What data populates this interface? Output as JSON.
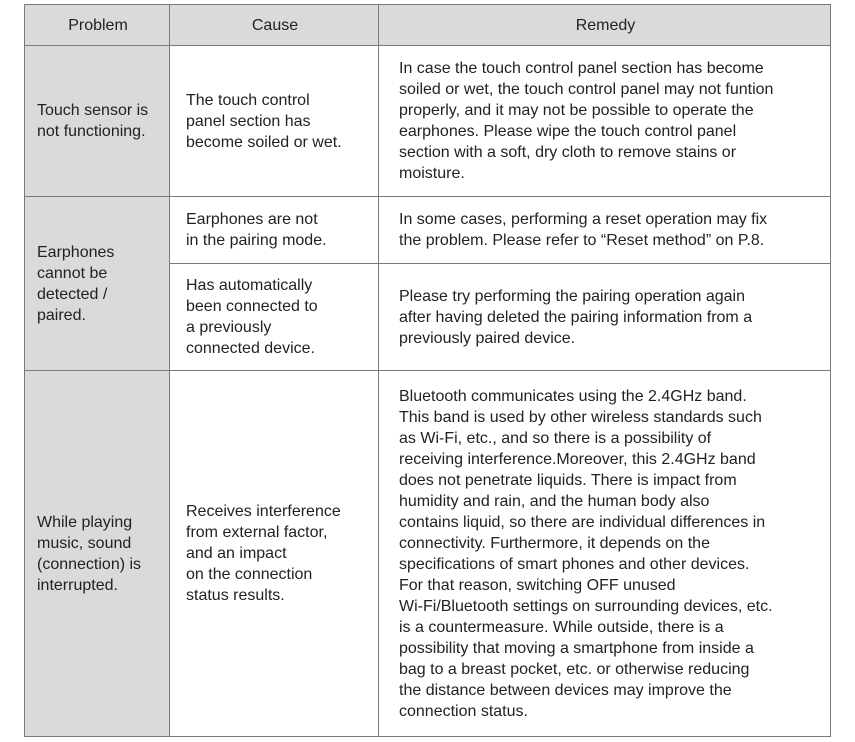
{
  "colors": {
    "header_bg": "#d9dadb",
    "border": "#7a7a7a",
    "text": "#222222"
  },
  "headers": {
    "problem": "Problem",
    "cause": "Cause",
    "remedy": "Remedy"
  },
  "rows": [
    {
      "problem": [
        "Touch sensor is",
        "not functioning."
      ],
      "cause": [
        "The touch control",
        "panel section has",
        "become soiled or wet."
      ],
      "remedy": [
        "In case the touch control panel section has become",
        "soiled or wet, the touch control panel may not funtion",
        "properly, and it may not be possible to operate the",
        "earphones.  Please wipe the touch control panel",
        "section with a soft, dry cloth to remove stains or",
        "moisture."
      ]
    },
    {
      "problem": [
        "Earphones",
        "cannot be",
        "detected /",
        "paired."
      ],
      "cause": [
        "Earphones are not",
        "in the pairing mode."
      ],
      "remedy": [
        "In some cases, performing a reset operation may fix",
        "the problem. Please refer to “Reset method” on P.8."
      ],
      "cause2": [
        "Has automatically",
        " been connected to",
        " a previously",
        " connected device."
      ],
      "remedy2": [
        "Please try performing the pairing operation again",
        "after having deleted the pairing information from a",
        "previously paired device."
      ]
    },
    {
      "problem": [
        "While playing",
        "music, sound",
        "(connection) is",
        "interrupted."
      ],
      "cause": [
        "Receives interference",
        "from external factor,",
        "and an impact",
        "on the connection",
        "status results."
      ],
      "remedy": [
        "Bluetooth communicates using the 2.4GHz band.",
        "This band is used by other wireless standards such",
        "as Wi-Fi, etc., and so there is a possibility of",
        "receiving interference.Moreover, this 2.4GHz band",
        "does not penetrate liquids.  There is impact from",
        "humidity and rain, and the human body also",
        "contains liquid, so there are individual differences in",
        "connectivity. Furthermore, it depends on the",
        "specifications of smart phones and other devices.",
        "For that reason, switching OFF unused",
        "Wi-Fi/Bluetooth settings on surrounding devices, etc.",
        "is a countermeasure. While outside, there is a",
        "possibility that moving a smartphone from inside a",
        "bag to a breast pocket, etc. or otherwise reducing",
        "the distance between devices may improve the",
        "connection status."
      ]
    }
  ]
}
